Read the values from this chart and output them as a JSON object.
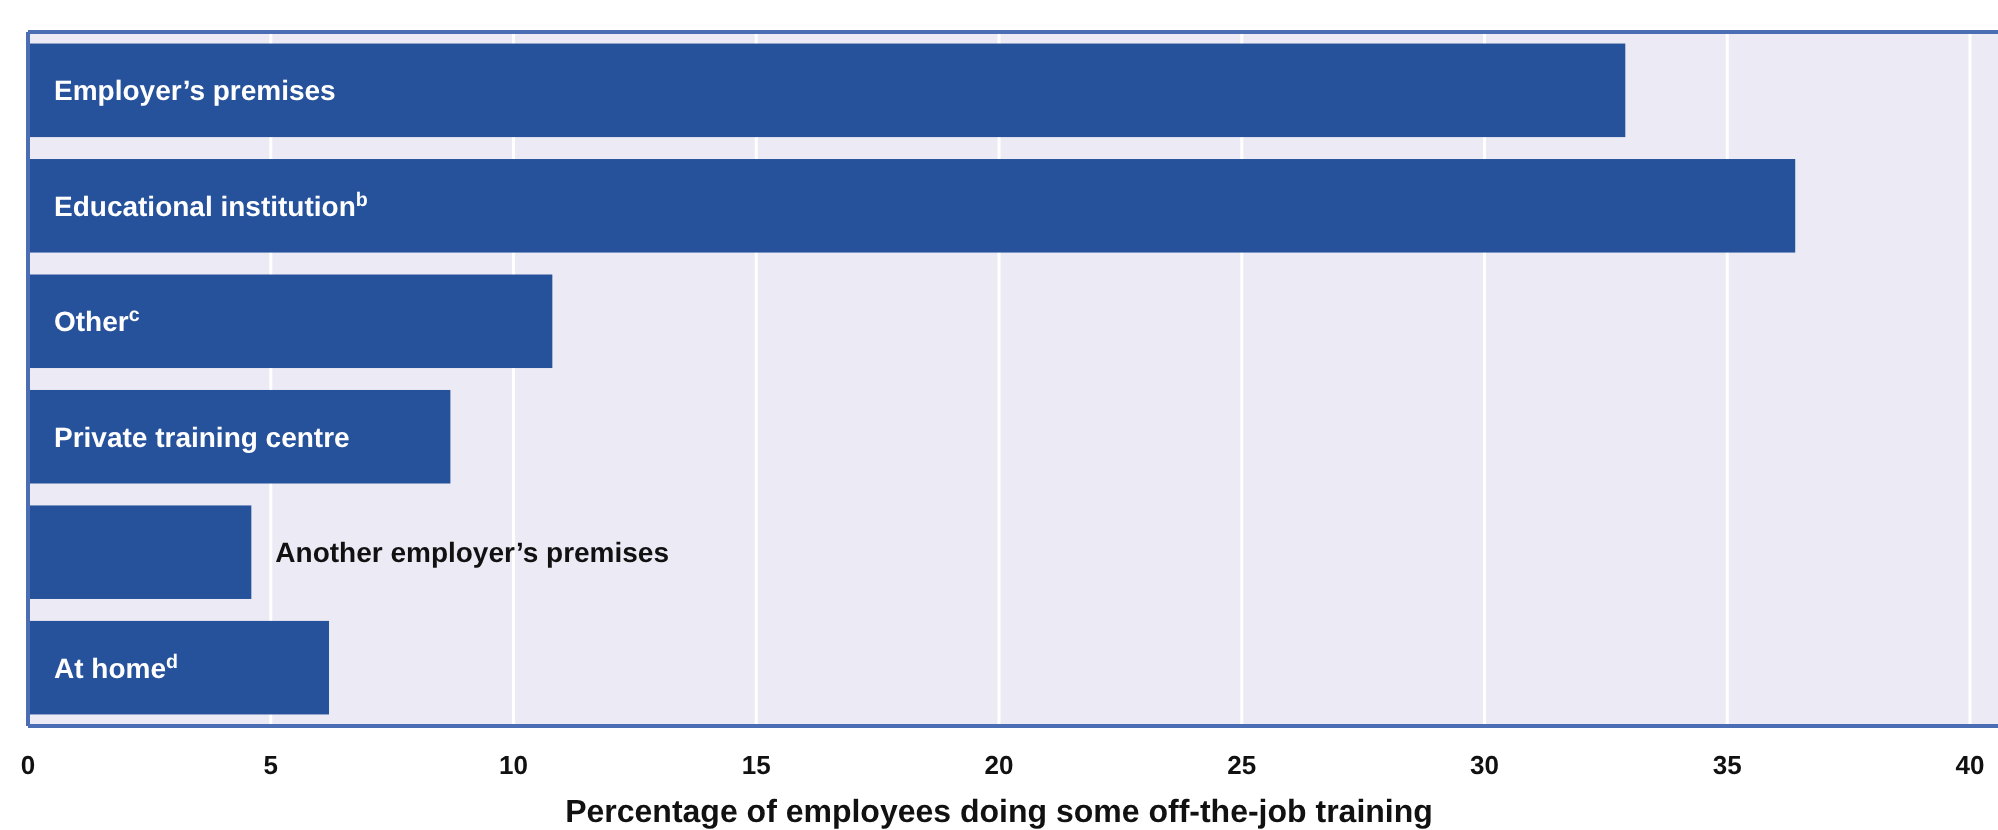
{
  "chart_data": {
    "type": "bar",
    "orientation": "horizontal",
    "xlabel": "Percentage of employees doing some off-the-job training",
    "categories": [
      "Employer’s premises",
      "Educational institution$^{b}$",
      "Other$^{c}$",
      "Private training centre",
      "Another employer’s premises",
      "At home$^{d}$"
    ],
    "values": [
      32.9,
      36.4,
      10.8,
      8.7,
      4.6,
      6.2
    ],
    "color": "#26519b",
    "xlim": [
      0,
      40
    ],
    "xticks": [
      0,
      5,
      10,
      15,
      20,
      25,
      30,
      35,
      40
    ],
    "grid": "x"
  }
}
